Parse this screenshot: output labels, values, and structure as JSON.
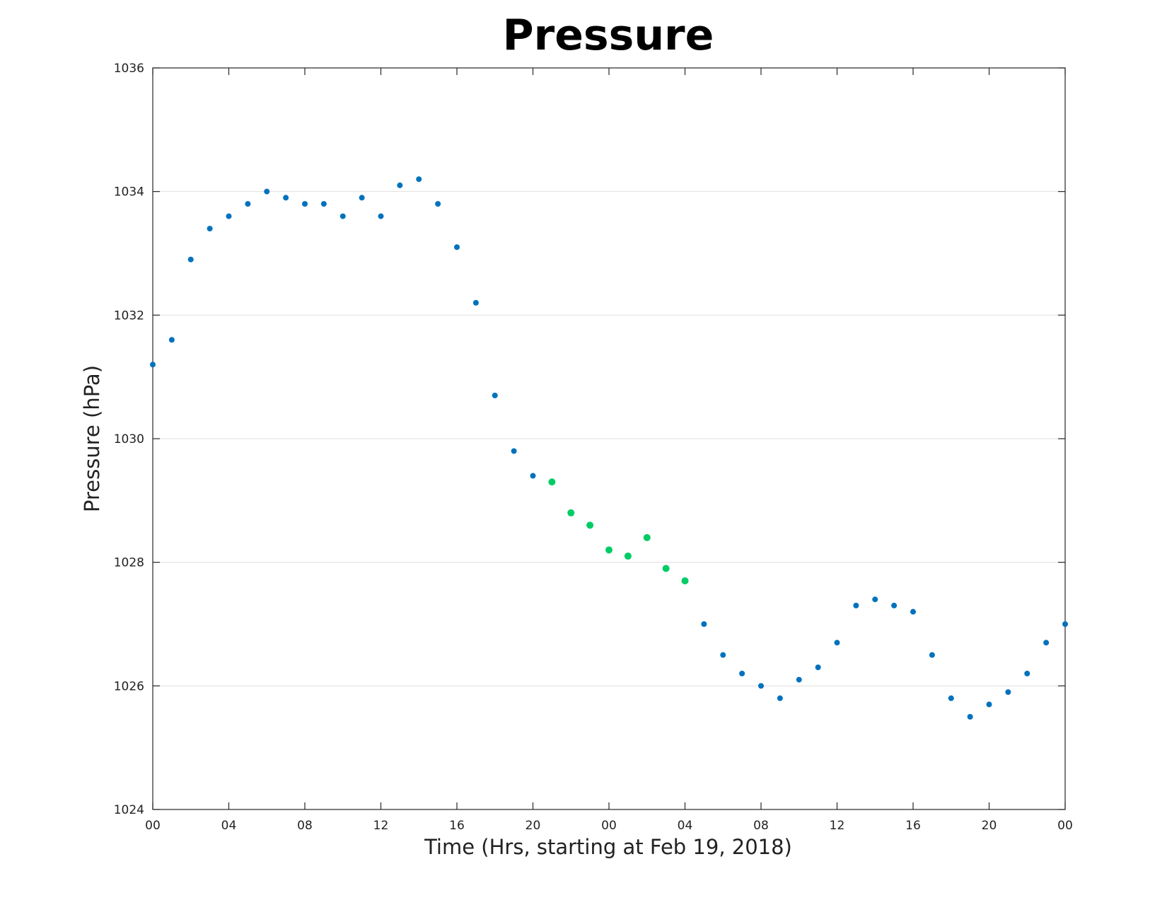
{
  "chart_data": {
    "type": "scatter",
    "title": "Pressure",
    "xlabel": "Time (Hrs, starting at Feb 19, 2018)",
    "ylabel": "Pressure (hPa)",
    "xlim": [
      0,
      48
    ],
    "ylim": [
      1024,
      1036
    ],
    "x_ticks": [
      0,
      4,
      8,
      12,
      16,
      20,
      24,
      28,
      32,
      36,
      40,
      44,
      48
    ],
    "x_tick_labels": [
      "00",
      "04",
      "08",
      "12",
      "16",
      "20",
      "00",
      "04",
      "08",
      "12",
      "16",
      "20",
      "00"
    ],
    "y_ticks": [
      1024,
      1026,
      1028,
      1030,
      1032,
      1034,
      1036
    ],
    "y_tick_labels": [
      "1024",
      "1026",
      "1028",
      "1030",
      "1032",
      "1034",
      "1036"
    ],
    "grid": "horizontal",
    "colors": {
      "primary": "#0072bd",
      "highlight": "#00cc66",
      "grid": "#dfdfdf",
      "axes": "#262626"
    },
    "series": [
      {
        "color": "#0072bd",
        "x": [
          0,
          1,
          2,
          3,
          4,
          5,
          6,
          7,
          8,
          9,
          10,
          11,
          12,
          13,
          14,
          15,
          16,
          17,
          18,
          19,
          20,
          29,
          30,
          31,
          32,
          33,
          34,
          35,
          36,
          37,
          38,
          39,
          40,
          41,
          42,
          43,
          44,
          45,
          46,
          47,
          48
        ],
        "y": [
          1031.2,
          1031.6,
          1032.9,
          1033.4,
          1033.6,
          1033.8,
          1034.0,
          1033.9,
          1033.8,
          1033.8,
          1033.6,
          1033.9,
          1033.6,
          1034.1,
          1034.2,
          1033.8,
          1033.1,
          1032.2,
          1030.7,
          1029.8,
          1029.4,
          1027.0,
          1026.5,
          1026.2,
          1026.0,
          1025.8,
          1026.1,
          1026.3,
          1026.7,
          1027.3,
          1027.4,
          1027.3,
          1027.2,
          1026.5,
          1025.8,
          1025.5,
          1025.7,
          1025.9,
          1026.2,
          1026.7,
          1027.0
        ]
      },
      {
        "color": "#00cc66",
        "x": [
          21,
          22,
          23,
          24,
          25,
          26,
          27,
          28
        ],
        "y": [
          1029.3,
          1028.8,
          1028.6,
          1028.2,
          1028.1,
          1028.4,
          1027.9,
          1027.7
        ]
      }
    ]
  }
}
